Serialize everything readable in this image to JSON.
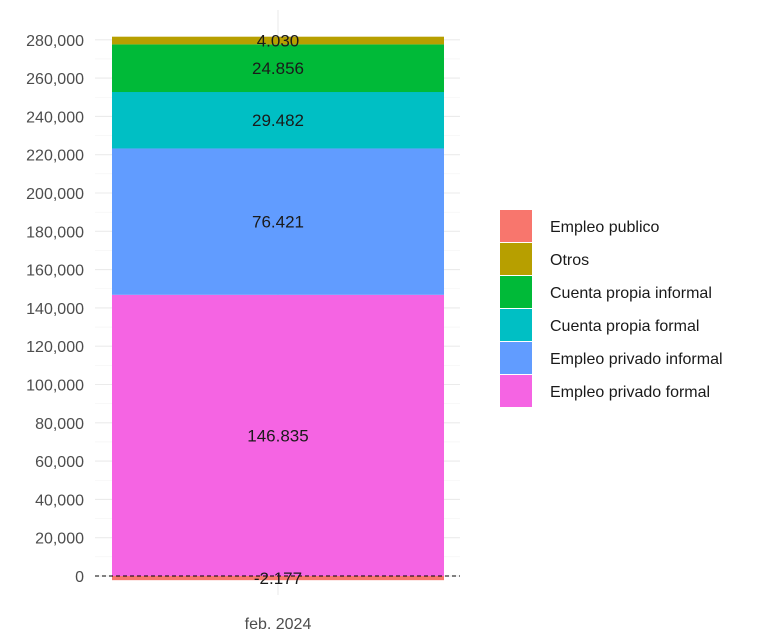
{
  "chart_data": {
    "type": "bar",
    "stacked": true,
    "categories": [
      "feb. 2024"
    ],
    "series": [
      {
        "name": "Empleo publico",
        "values": [
          -2177
        ],
        "label": "-2.177",
        "color": "#F8766D"
      },
      {
        "name": "Empleo privado formal",
        "values": [
          146835
        ],
        "label": "146.835",
        "color": "#F564E3"
      },
      {
        "name": "Empleo privado informal",
        "values": [
          76421
        ],
        "label": "76.421",
        "color": "#619CFF"
      },
      {
        "name": "Cuenta propia formal",
        "values": [
          29482
        ],
        "label": "29.482",
        "color": "#00BFC4"
      },
      {
        "name": "Cuenta propia informal",
        "values": [
          24856
        ],
        "label": "24.856",
        "color": "#00BA38"
      },
      {
        "name": "Otros",
        "values": [
          4030
        ],
        "label": "4.030",
        "color": "#B79F00"
      }
    ],
    "legend_order": [
      "Empleo publico",
      "Otros",
      "Cuenta propia informal",
      "Cuenta propia formal",
      "Empleo privado informal",
      "Empleo privado formal"
    ],
    "legend_position": "right",
    "y_ticks": [
      0,
      20000,
      40000,
      60000,
      80000,
      100000,
      120000,
      140000,
      160000,
      180000,
      200000,
      220000,
      240000,
      260000,
      280000
    ],
    "y_tick_labels": [
      "0",
      "20,000",
      "40,000",
      "60,000",
      "80,000",
      "100,000",
      "120,000",
      "140,000",
      "160,000",
      "180,000",
      "200,000",
      "220,000",
      "240,000",
      "260,000",
      "280,000"
    ],
    "ylim": [
      -9000,
      290000
    ],
    "grid": true,
    "zero_line": "dashed",
    "title": "",
    "xlabel": "",
    "ylabel": ""
  }
}
